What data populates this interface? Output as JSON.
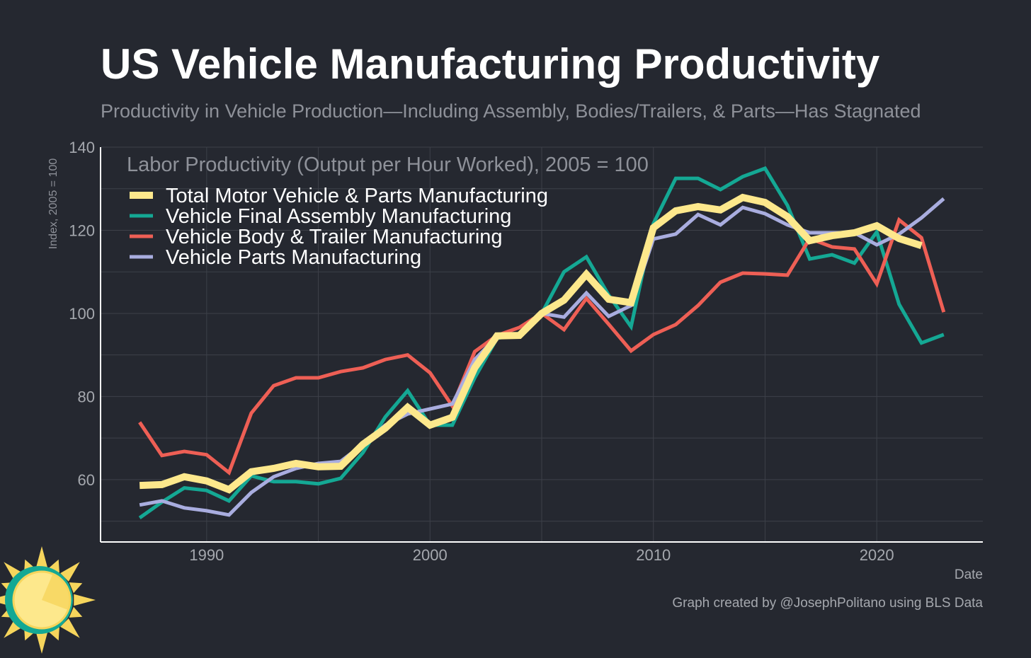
{
  "title": "US Vehicle Manufacturing Productivity",
  "subtitle": "Productivity in Vehicle Production—Including Assembly, Bodies/Trailers, & Parts—Has Stagnated",
  "credit": "Graph created by @JosephPolitano using BLS Data",
  "colors": {
    "background": "#252830",
    "grid": "#3d4049",
    "axis": "#ffffff"
  },
  "chart_data": {
    "type": "line",
    "title": "US Vehicle Manufacturing Productivity",
    "annotation": "Labor Productivity (Output per Hour Worked), 2005 = 100",
    "xlabel": "Date",
    "ylabel": "Index, 2005 = 100",
    "xlim": [
      1985.25,
      2024.75
    ],
    "ylim": [
      45,
      140
    ],
    "xticks": [
      1990,
      2000,
      2010,
      2020
    ],
    "yticks": [
      60,
      80,
      100,
      120,
      140
    ],
    "grid": true,
    "legend": "top-left",
    "x": [
      1987,
      1988,
      1989,
      1990,
      1991,
      1992,
      1993,
      1994,
      1995,
      1996,
      1997,
      1998,
      1999,
      2000,
      2001,
      2002,
      2003,
      2004,
      2005,
      2006,
      2007,
      2008,
      2009,
      2010,
      2011,
      2012,
      2013,
      2014,
      2015,
      2016,
      2017,
      2018,
      2019,
      2020,
      2021,
      2022,
      2023
    ],
    "series": [
      {
        "name": "Vehicle Final Assembly Manufacturing",
        "color": "#14a894",
        "values": [
          50.8,
          54.6,
          58.0,
          57.4,
          54.9,
          60.9,
          59.5,
          59.5,
          59.0,
          60.3,
          66.5,
          75.1,
          81.4,
          73.1,
          73.1,
          84.5,
          94.0,
          95.0,
          100,
          110.0,
          113.6,
          104.4,
          96.8,
          121.6,
          132.5,
          132.5,
          129.8,
          132.9,
          134.9,
          126.0,
          113.1,
          114.1,
          112.1,
          119.6,
          102.2,
          92.9,
          94.9
        ]
      },
      {
        "name": "Vehicle Body & Trailer Manufacturing",
        "color": "#ee5f55",
        "values": [
          73.8,
          65.8,
          66.8,
          66.0,
          61.7,
          76.0,
          82.6,
          84.5,
          84.5,
          86.0,
          86.9,
          88.9,
          90.0,
          85.7,
          77.7,
          90.8,
          94.7,
          96.6,
          100,
          96.1,
          103.6,
          97.4,
          91.0,
          94.9,
          97.3,
          101.9,
          107.5,
          109.7,
          109.5,
          109.2,
          118.0,
          116.0,
          115.5,
          107.1,
          122.5,
          118.2,
          100.3
        ]
      },
      {
        "name": "Vehicle Parts Manufacturing",
        "color": "#a9addf",
        "values": [
          53.9,
          54.9,
          53.2,
          52.5,
          51.5,
          56.9,
          60.7,
          62.7,
          63.9,
          64.4,
          68.5,
          73.1,
          75.8,
          77.0,
          78.2,
          88.9,
          94.4,
          94.7,
          100,
          99.1,
          104.9,
          99.3,
          101.9,
          117.9,
          119.1,
          123.8,
          121.3,
          125.5,
          124.0,
          121.3,
          119.4,
          119.4,
          119.4,
          116.5,
          119.1,
          123.0,
          127.6
        ]
      },
      {
        "name": "Total Motor Vehicle & Parts Manufacturing",
        "color": "#fde88c",
        "values": [
          58.6,
          58.8,
          60.7,
          59.7,
          57.6,
          61.9,
          62.7,
          63.9,
          63.1,
          63.2,
          68.5,
          72.4,
          77.4,
          73.1,
          75.0,
          86.9,
          94.6,
          94.7,
          100,
          103.2,
          109.4,
          103.4,
          102.6,
          120.6,
          124.7,
          125.7,
          124.9,
          127.9,
          126.7,
          123.3,
          117.5,
          118.7,
          119.4,
          121.1,
          118.0,
          116.3,
          null
        ]
      }
    ],
    "legend_order": [
      "Total Motor Vehicle & Parts Manufacturing",
      "Vehicle Final Assembly Manufacturing",
      "Vehicle Body & Trailer Manufacturing",
      "Vehicle Parts Manufacturing"
    ]
  }
}
